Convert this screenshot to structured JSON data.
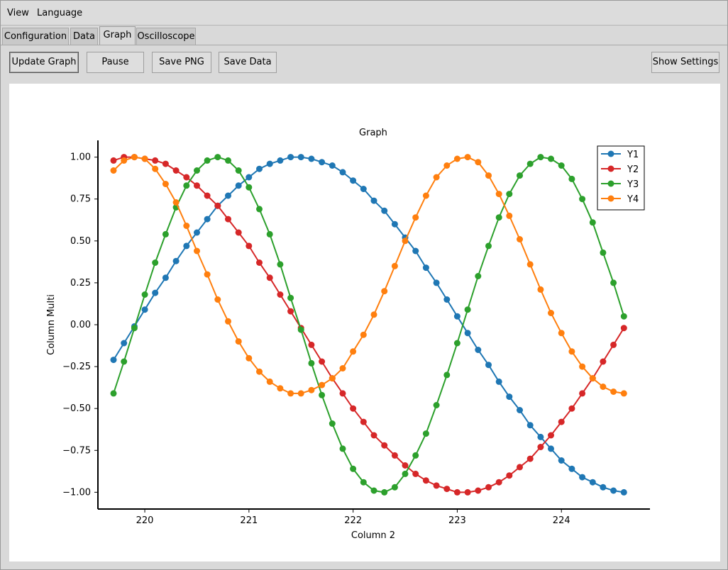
{
  "menubar": {
    "items": [
      "View",
      "Language"
    ]
  },
  "tabs": [
    {
      "label": "Configuration",
      "active": false
    },
    {
      "label": "Data",
      "active": false
    },
    {
      "label": "Graph",
      "active": true
    },
    {
      "label": "Oscilloscope",
      "active": false
    }
  ],
  "toolbar": {
    "update_graph": "Update Graph",
    "pause": "Pause",
    "save_png": "Save PNG",
    "save_data": "Save Data",
    "show_settings": "Show Settings"
  },
  "chart_data": {
    "type": "line",
    "title": "Graph",
    "xlabel": "Column 2",
    "ylabel": "Column Multi",
    "xlim": [
      219.55,
      224.85
    ],
    "ylim": [
      -1.1,
      1.1
    ],
    "xticks": [
      220,
      221,
      222,
      223,
      224
    ],
    "xtick_labels": [
      "220",
      "221",
      "222",
      "223",
      "224"
    ],
    "yticks": [
      -1.0,
      -0.75,
      -0.5,
      -0.25,
      0.0,
      0.25,
      0.5,
      0.75,
      1.0
    ],
    "ytick_labels": [
      "−1.00",
      "−0.75",
      "−0.50",
      "−0.25",
      "0.00",
      "0.25",
      "0.50",
      "0.75",
      "1.00"
    ],
    "grid": false,
    "legend_position": "top-right",
    "x": [
      219.7,
      219.8,
      219.9,
      220.0,
      220.1,
      220.2,
      220.3,
      220.4,
      220.5,
      220.6,
      220.7,
      220.8,
      220.9,
      221.0,
      221.1,
      221.2,
      221.3,
      221.4,
      221.5,
      221.6,
      221.7,
      221.8,
      221.9,
      222.0,
      222.1,
      222.2,
      222.3,
      222.4,
      222.5,
      222.6,
      222.7,
      222.8,
      222.9,
      223.0,
      223.1,
      223.2,
      223.3,
      223.4,
      223.5,
      223.6,
      223.7,
      223.8,
      223.9,
      224.0,
      224.1,
      224.2,
      224.3,
      224.4,
      224.5,
      224.6
    ],
    "series": [
      {
        "name": "Y1",
        "color": "#1f77b4",
        "values": [
          -0.21,
          -0.11,
          -0.01,
          0.09,
          0.19,
          0.28,
          0.38,
          0.47,
          0.55,
          0.63,
          0.71,
          0.77,
          0.83,
          0.88,
          0.93,
          0.96,
          0.98,
          1.0,
          1.0,
          0.99,
          0.97,
          0.95,
          0.91,
          0.86,
          0.81,
          0.74,
          0.68,
          0.6,
          0.52,
          0.44,
          0.34,
          0.25,
          0.15,
          0.05,
          -0.05,
          -0.15,
          -0.24,
          -0.34,
          -0.43,
          -0.51,
          -0.6,
          -0.67,
          -0.74,
          -0.81,
          -0.86,
          -0.91,
          -0.94,
          -0.97,
          -0.99,
          -1.0
        ]
      },
      {
        "name": "Y2",
        "color": "#d62728",
        "values": [
          0.98,
          1.0,
          1.0,
          0.99,
          0.98,
          0.96,
          0.92,
          0.88,
          0.83,
          0.77,
          0.71,
          0.63,
          0.55,
          0.47,
          0.37,
          0.28,
          0.18,
          0.08,
          -0.02,
          -0.12,
          -0.22,
          -0.32,
          -0.41,
          -0.5,
          -0.58,
          -0.66,
          -0.72,
          -0.78,
          -0.84,
          -0.89,
          -0.93,
          -0.96,
          -0.98,
          -1.0,
          -1.0,
          -0.99,
          -0.97,
          -0.94,
          -0.9,
          -0.85,
          -0.8,
          -0.73,
          -0.66,
          -0.58,
          -0.5,
          -0.41,
          -0.32,
          -0.22,
          -0.12,
          -0.02
        ]
      },
      {
        "name": "Y3",
        "color": "#2ca02c",
        "values": [
          -0.41,
          -0.22,
          -0.02,
          0.18,
          0.37,
          0.54,
          0.7,
          0.83,
          0.92,
          0.98,
          1.0,
          0.98,
          0.92,
          0.82,
          0.69,
          0.54,
          0.36,
          0.16,
          -0.03,
          -0.23,
          -0.42,
          -0.59,
          -0.74,
          -0.86,
          -0.94,
          -0.99,
          -1.0,
          -0.97,
          -0.89,
          -0.78,
          -0.65,
          -0.48,
          -0.3,
          -0.11,
          0.09,
          0.29,
          0.47,
          0.64,
          0.78,
          0.89,
          0.96,
          1.0,
          0.99,
          0.95,
          0.87,
          0.75,
          0.61,
          0.43,
          0.25,
          0.05
        ]
      },
      {
        "name": "Y4",
        "color": "#ff7f0e",
        "values": [
          0.92,
          0.98,
          1.0,
          0.99,
          0.93,
          0.84,
          0.73,
          0.59,
          0.44,
          0.3,
          0.15,
          0.02,
          -0.1,
          -0.2,
          -0.28,
          -0.34,
          -0.38,
          -0.41,
          -0.41,
          -0.39,
          -0.36,
          -0.32,
          -0.26,
          -0.16,
          -0.06,
          0.06,
          0.2,
          0.35,
          0.5,
          0.64,
          0.77,
          0.88,
          0.95,
          0.99,
          1.0,
          0.97,
          0.89,
          0.78,
          0.65,
          0.51,
          0.36,
          0.21,
          0.07,
          -0.05,
          -0.16,
          -0.25,
          -0.32,
          -0.37,
          -0.4,
          -0.41
        ]
      }
    ]
  }
}
